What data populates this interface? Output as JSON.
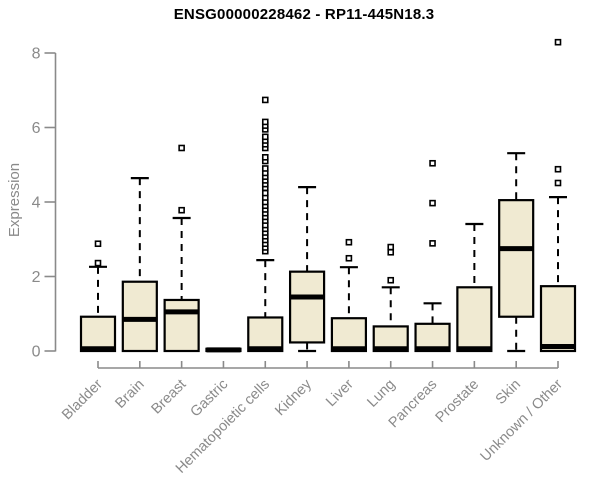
{
  "page": {
    "background": "#ffffff"
  },
  "chart_data": {
    "type": "boxplot",
    "title": "ENSG00000228462 - RP11-445N18.3",
    "ylabel": "Expression",
    "xlabel": "",
    "ylim": [
      0,
      8
    ],
    "yticks": [
      0,
      2,
      4,
      6,
      8
    ],
    "grid": false,
    "legend": false,
    "categories": [
      "Bladder",
      "Brain",
      "Breast",
      "Gastric",
      "Hematopoietic cells",
      "Kidney",
      "Liver",
      "Lung",
      "Pancreas",
      "Prostate",
      "Skin",
      "Unknown / Other"
    ],
    "boxes": [
      {
        "category": "Bladder",
        "whisker_low": 0,
        "q1": 0,
        "median": 0.06,
        "q3": 0.92,
        "whisker_high": 2.26,
        "outliers": [
          2.36,
          2.88
        ]
      },
      {
        "category": "Brain",
        "whisker_low": 0,
        "q1": 0,
        "median": 0.85,
        "q3": 1.86,
        "whisker_high": 4.64,
        "outliers": []
      },
      {
        "category": "Breast",
        "whisker_low": 0,
        "q1": 0,
        "median": 1.05,
        "q3": 1.37,
        "whisker_high": 3.57,
        "outliers": [
          3.78,
          5.45
        ]
      },
      {
        "category": "Gastric",
        "whisker_low": 0,
        "q1": 0,
        "median": 0.03,
        "q3": 0.06,
        "whisker_high": 0.06,
        "outliers": []
      },
      {
        "category": "Hematopoietic cells",
        "whisker_low": 0,
        "q1": 0,
        "median": 0.06,
        "q3": 0.9,
        "whisker_high": 2.44,
        "outliers": [
          2.68,
          2.78,
          2.88,
          2.98,
          3.08,
          3.18,
          3.28,
          3.38,
          3.5,
          3.6,
          3.7,
          3.8,
          3.9,
          4.0,
          4.12,
          4.24,
          4.38,
          4.48,
          4.58,
          4.68,
          4.78,
          4.9,
          5.1,
          5.2,
          5.45,
          5.55,
          5.65,
          5.75,
          5.95,
          6.05,
          6.15,
          6.74
        ]
      },
      {
        "category": "Kidney",
        "whisker_low": 0,
        "q1": 0.23,
        "median": 1.45,
        "q3": 2.13,
        "whisker_high": 4.4,
        "outliers": []
      },
      {
        "category": "Liver",
        "whisker_low": 0,
        "q1": 0,
        "median": 0.06,
        "q3": 0.88,
        "whisker_high": 2.25,
        "outliers": [
          2.49,
          2.92
        ]
      },
      {
        "category": "Lung",
        "whisker_low": 0,
        "q1": 0,
        "median": 0.06,
        "q3": 0.66,
        "whisker_high": 1.71,
        "outliers": [
          1.9,
          2.65,
          2.79
        ]
      },
      {
        "category": "Pancreas",
        "whisker_low": 0,
        "q1": 0,
        "median": 0.06,
        "q3": 0.73,
        "whisker_high": 1.28,
        "outliers": [
          2.89,
          3.97,
          5.04
        ]
      },
      {
        "category": "Prostate",
        "whisker_low": 0,
        "q1": 0,
        "median": 0.06,
        "q3": 1.71,
        "whisker_high": 3.41,
        "outliers": []
      },
      {
        "category": "Skin",
        "whisker_low": 0,
        "q1": 0.92,
        "median": 2.75,
        "q3": 4.05,
        "whisker_high": 5.31,
        "outliers": []
      },
      {
        "category": "Unknown / Other",
        "whisker_low": 0,
        "q1": 0,
        "median": 0.12,
        "q3": 1.74,
        "whisker_high": 4.13,
        "outliers": [
          4.51,
          4.88,
          8.29
        ]
      }
    ],
    "colors": {
      "box_fill": "#f0ead2",
      "box_border": "#000000",
      "median": "#000000",
      "whisker": "#000000",
      "outlier_stroke": "#000000",
      "outlier_fill": "#ffffff",
      "axis": "#8a8a8a",
      "tick_label": "#8a8a8a",
      "title": "#000000"
    }
  }
}
